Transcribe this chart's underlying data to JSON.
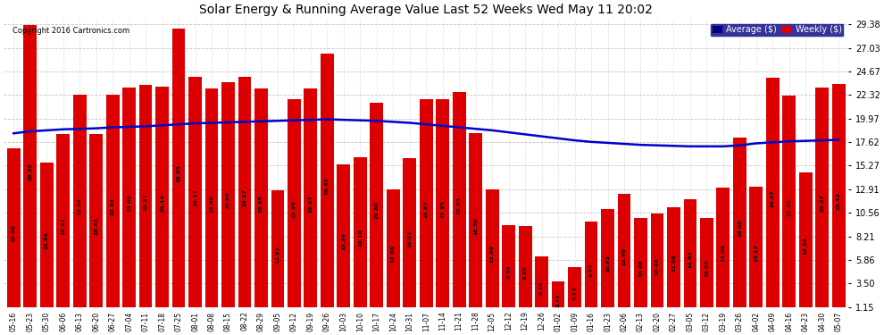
{
  "title": "Solar Energy & Running Average Value Last 52 Weeks Wed May 11 20:02",
  "copyright": "Copyright 2016 Cartronics.com",
  "bar_color": "#dd0000",
  "avg_line_color": "#0000cc",
  "background_color": "#ffffff",
  "plot_bg_color": "#ffffff",
  "grid_color": "#aaaaaa",
  "ylim": [
    1.15,
    29.38
  ],
  "yticks": [
    1.15,
    3.5,
    5.86,
    8.21,
    10.56,
    12.91,
    15.27,
    17.62,
    19.97,
    22.32,
    24.67,
    27.03,
    29.38
  ],
  "categories": [
    "05-16",
    "05-23",
    "05-30",
    "06-06",
    "06-13",
    "06-20",
    "06-27",
    "07-04",
    "07-11",
    "07-18",
    "07-25",
    "08-01",
    "08-08",
    "08-15",
    "08-22",
    "08-29",
    "09-05",
    "09-12",
    "09-19",
    "09-26",
    "10-03",
    "10-10",
    "10-17",
    "10-24",
    "10-31",
    "11-07",
    "11-14",
    "11-21",
    "11-28",
    "12-05",
    "12-12",
    "12-19",
    "12-26",
    "01-02",
    "01-09",
    "01-16",
    "01-23",
    "02-06",
    "02-13",
    "02-20",
    "02-27",
    "03-05",
    "03-12",
    "03-19",
    "03-26",
    "04-02",
    "04-09",
    "04-16",
    "04-23",
    "04-30",
    "05-07"
  ],
  "weekly_values": [
    16.99,
    29.32,
    15.56,
    18.41,
    22.34,
    18.43,
    22.34,
    23.09,
    23.37,
    23.14,
    28.95,
    24.17,
    22.95,
    23.6,
    24.17,
    22.95,
    12.81,
    21.95,
    22.97,
    26.42,
    15.39,
    16.1,
    21.6,
    12.86,
    16.01,
    21.87,
    21.95,
    22.63,
    18.5,
    12.89,
    9.34,
    9.2,
    6.18,
    3.71,
    5.13,
    9.73,
    10.93,
    12.49,
    10.08,
    10.48,
    11.08,
    11.91,
    10.03,
    13.04,
    18.08,
    13.17,
    24.07,
    22.3,
    14.59,
    23.07,
    23.42
  ],
  "avg_values": [
    18.5,
    18.7,
    18.8,
    18.9,
    18.95,
    19.0,
    19.1,
    19.15,
    19.2,
    19.3,
    19.4,
    19.5,
    19.55,
    19.6,
    19.65,
    19.7,
    19.75,
    19.8,
    19.85,
    19.9,
    19.85,
    19.8,
    19.75,
    19.65,
    19.55,
    19.4,
    19.25,
    19.1,
    18.95,
    18.8,
    18.6,
    18.4,
    18.2,
    18.0,
    17.8,
    17.65,
    17.55,
    17.45,
    17.35,
    17.3,
    17.25,
    17.2,
    17.2,
    17.2,
    17.3,
    17.5,
    17.6,
    17.7,
    17.75,
    17.8,
    17.85
  ],
  "legend_avg_label": "Average ($)",
  "legend_weekly_label": "Weekly ($)",
  "legend_avg_bg": "#000080",
  "legend_weekly_bg": "#dd0000"
}
